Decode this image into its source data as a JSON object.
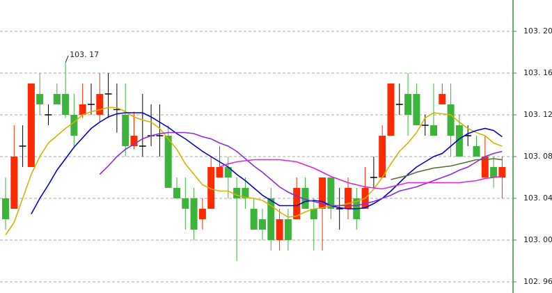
{
  "chart_data": {
    "type": "candlestick",
    "ylim": [
      102.9493,
      103.23
    ],
    "yticks": [
      {
        "value": 103.2,
        "label": "103. 20"
      },
      {
        "value": 103.16,
        "label": "103. 16"
      },
      {
        "value": 103.12,
        "label": "103. 12"
      },
      {
        "value": 103.08,
        "label": "103. 08"
      },
      {
        "value": 103.04,
        "label": "103. 04"
      },
      {
        "value": 103.0,
        "label": "103. 00"
      },
      {
        "value": 102.96,
        "label": "102. 96"
      }
    ],
    "grid": true,
    "up_color": "#ff2a00",
    "down_color": "#3cb43c",
    "flat_color": "#000000",
    "open": [
      103.04,
      103.03,
      103.09,
      103.07,
      103.14,
      103.12,
      103.14,
      103.14,
      103.12,
      103.12,
      103.13,
      103.12,
      103.14,
      103.125,
      103.12,
      103.09,
      103.09,
      103.1,
      103.1,
      103.1,
      103.05,
      103.04,
      103.04,
      103.02,
      103.03,
      103.06,
      103.07,
      103.05,
      103.05,
      103.03,
      103.02,
      103.04,
      103.0,
      103.02,
      103.02,
      103.05,
      103.03,
      103.03,
      103.06,
      103.03,
      103.03,
      103.04,
      103.03,
      103.06,
      103.06,
      103.1,
      103.13,
      103.14,
      103.14,
      103.11,
      103.11,
      103.13,
      103.13,
      103.11,
      103.1,
      103.09,
      103.06,
      103.07,
      103.06
    ],
    "high": [
      103.06,
      103.11,
      103.11,
      103.15,
      103.16,
      103.13,
      103.15,
      103.17,
      103.14,
      103.15,
      103.15,
      103.16,
      103.16,
      103.15,
      103.15,
      103.123,
      103.14,
      103.13,
      103.13,
      103.11,
      103.06,
      103.06,
      103.05,
      103.04,
      103.08,
      103.09,
      103.08,
      103.06,
      103.06,
      103.04,
      103.03,
      103.05,
      103.03,
      103.03,
      103.06,
      103.06,
      103.04,
      103.06,
      103.06,
      103.05,
      103.06,
      103.05,
      103.07,
      103.08,
      103.11,
      103.15,
      103.15,
      103.16,
      103.15,
      103.12,
      103.15,
      103.15,
      103.15,
      103.12,
      103.11,
      103.1,
      103.1,
      103.08,
      103.08
    ],
    "low": [
      103.01,
      103.03,
      103.07,
      103.07,
      103.12,
      103.11,
      103.13,
      103.117,
      103.09,
      103.117,
      103.12,
      103.113,
      103.117,
      103.103,
      103.08,
      103.087,
      103.08,
      103.09,
      103.08,
      103.05,
      103.04,
      103.01,
      103.0,
      103.01,
      103.03,
      103.06,
      103.04,
      102.98,
      103.03,
      103.01,
      103.0,
      102.99,
      102.99,
      102.99,
      103.02,
      103.03,
      102.99,
      102.99,
      103.02,
      103.01,
      103.02,
      103.01,
      103.03,
      103.05,
      103.06,
      103.1,
      103.12,
      103.1,
      103.11,
      103.1,
      103.1,
      103.13,
      103.08,
      103.08,
      103.09,
      103.08,
      103.06,
      103.05,
      103.04
    ],
    "close": [
      103.02,
      103.08,
      103.09,
      103.15,
      103.13,
      103.12,
      103.13,
      103.12,
      103.1,
      103.13,
      103.13,
      103.14,
      103.14,
      103.125,
      103.09,
      103.1,
      103.09,
      103.1,
      103.1,
      103.05,
      103.04,
      103.03,
      103.01,
      103.03,
      103.07,
      103.07,
      103.06,
      103.04,
      103.04,
      103.01,
      103.01,
      103.0,
      103.02,
      103.0,
      103.05,
      103.03,
      103.02,
      103.06,
      103.03,
      103.03,
      103.05,
      103.02,
      103.05,
      103.06,
      103.1,
      103.15,
      103.13,
      103.12,
      103.11,
      103.11,
      103.1,
      103.14,
      103.1,
      103.08,
      103.1,
      103.08,
      103.08,
      103.06,
      103.07
    ],
    "lines": [
      {
        "color": "#d4b400",
        "values": [
          103.005,
          103.017,
          103.04,
          103.063,
          103.08,
          103.093,
          103.1,
          103.107,
          103.113,
          103.12,
          103.123,
          103.125,
          103.127,
          103.127,
          103.123,
          103.118,
          103.115,
          103.113,
          103.107,
          103.097,
          103.087,
          103.073,
          103.063,
          103.053,
          103.049,
          103.047,
          103.047,
          103.043,
          103.041,
          103.04,
          103.038,
          103.033,
          103.027,
          103.022,
          103.023,
          103.027,
          103.03,
          103.031,
          103.033,
          103.033,
          103.035,
          103.037,
          103.04,
          103.049,
          103.06,
          103.073,
          103.085,
          103.093,
          103.103,
          103.117,
          103.122,
          103.121,
          103.12,
          103.113,
          103.107,
          103.103,
          103.1,
          103.093,
          103.09
        ]
      },
      {
        "color": "#0000cc",
        "values": [
          null,
          null,
          null,
          103.025,
          103.04,
          103.053,
          103.067,
          103.078,
          103.089,
          103.098,
          103.107,
          103.113,
          103.118,
          103.121,
          103.122,
          103.122,
          103.122,
          103.118,
          103.113,
          103.108,
          103.102,
          103.097,
          103.091,
          103.085,
          103.08,
          103.075,
          103.07,
          103.063,
          103.057,
          103.05,
          103.043,
          103.038,
          103.033,
          103.033,
          103.033,
          103.037,
          103.038,
          103.037,
          103.033,
          103.031,
          103.03,
          103.03,
          103.031,
          103.035,
          103.04,
          103.047,
          103.055,
          103.063,
          103.07,
          103.075,
          103.08,
          103.083,
          103.09,
          103.097,
          103.102,
          103.105,
          103.107,
          103.105,
          103.099
        ]
      },
      {
        "color": "#8a2be2",
        "values": [
          null,
          null,
          null,
          null,
          null,
          null,
          null,
          null,
          null,
          null,
          null,
          103.063,
          103.071,
          103.08,
          103.087,
          103.092,
          103.097,
          103.1,
          103.102,
          103.103,
          103.103,
          103.103,
          103.102,
          103.099,
          103.097,
          103.093,
          103.09,
          103.085,
          103.078,
          103.071,
          103.065,
          103.058,
          103.051,
          103.046,
          103.042,
          103.039,
          103.037,
          103.035,
          103.033,
          103.033,
          103.033,
          103.033,
          103.035,
          103.037,
          103.04,
          103.043,
          103.047,
          103.049,
          103.051,
          103.054,
          103.057,
          103.06,
          103.063,
          103.067,
          103.07,
          103.075,
          103.08,
          103.083,
          103.085
        ]
      },
      {
        "color": "#e020e0",
        "values": [
          null,
          null,
          null,
          null,
          null,
          null,
          null,
          null,
          null,
          null,
          null,
          null,
          null,
          null,
          null,
          null,
          null,
          null,
          null,
          null,
          null,
          null,
          null,
          null,
          null,
          103.07,
          103.073,
          103.075,
          103.076,
          103.077,
          103.077,
          103.077,
          103.077,
          103.076,
          103.075,
          103.072,
          103.069,
          103.065,
          103.061,
          103.058,
          103.055,
          103.053,
          103.051,
          103.05,
          103.049,
          103.051,
          103.053,
          103.055,
          103.055,
          103.055,
          103.055,
          103.055,
          103.055,
          103.055,
          103.056,
          103.057,
          103.059,
          103.06,
          103.061
        ]
      },
      {
        "color": "#556b2f",
        "values": [
          null,
          null,
          null,
          null,
          null,
          null,
          null,
          null,
          null,
          null,
          null,
          null,
          null,
          null,
          null,
          null,
          null,
          null,
          null,
          null,
          null,
          null,
          null,
          null,
          null,
          null,
          null,
          null,
          null,
          null,
          null,
          null,
          null,
          null,
          null,
          null,
          null,
          null,
          null,
          null,
          null,
          null,
          null,
          null,
          null,
          103.058,
          103.06,
          103.062,
          103.065,
          103.067,
          103.069,
          103.07,
          103.071,
          103.073,
          103.075,
          103.077,
          103.077,
          103.078,
          103.077
        ]
      }
    ],
    "annotation": {
      "label": "103. 17",
      "index": 7,
      "value": 103.17
    }
  }
}
